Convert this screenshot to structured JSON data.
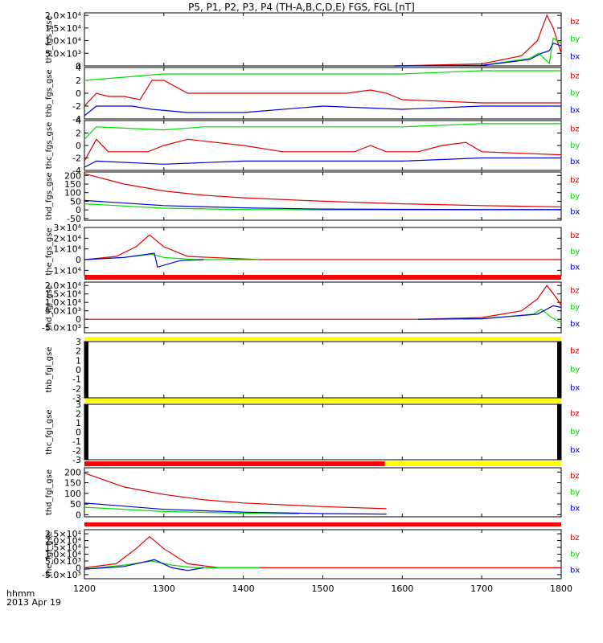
{
  "title": "P5, P1, P2, P3, P4 (TH-A,B,C,D,E) FGS, FGL [nT]",
  "footer": {
    "line1": "hhmm",
    "line2": "2013 Apr 19"
  },
  "colors": {
    "bz": "#e00000",
    "by": "#00dd00",
    "bx": "#0000dd",
    "status_red": "#ff0000",
    "status_yellow": "#ffff00"
  },
  "chart_data": {
    "type": "line",
    "xlabel": "",
    "x_ticks": [
      "1200",
      "1300",
      "1400",
      "1500",
      "1600",
      "1700",
      "1800"
    ],
    "xlim": [
      1200,
      1800
    ],
    "legend": [
      "bz",
      "by",
      "bx"
    ],
    "panels": [
      {
        "ylabel": "tha_fgs_gse",
        "ylim": [
          0,
          21000
        ],
        "yticks": [
          "0",
          "5.0×10³",
          "1.0×10⁴",
          "1.5×10⁴",
          "2.0×10⁴"
        ],
        "series": [
          {
            "name": "bz",
            "points": [
              [
                1590,
                0
              ],
              [
                1700,
                800
              ],
              [
                1750,
                4000
              ],
              [
                1770,
                10000
              ],
              [
                1782,
                20000
              ],
              [
                1790,
                15000
              ],
              [
                1800,
                5000
              ]
            ]
          },
          {
            "name": "by",
            "points": [
              [
                1590,
                0
              ],
              [
                1700,
                200
              ],
              [
                1760,
                3000
              ],
              [
                1772,
                5000
              ],
              [
                1785,
                1000
              ],
              [
                1790,
                11000
              ],
              [
                1800,
                9000
              ]
            ]
          },
          {
            "name": "bx",
            "points": [
              [
                1590,
                0
              ],
              [
                1700,
                200
              ],
              [
                1760,
                2500
              ],
              [
                1775,
                5000
              ],
              [
                1785,
                6000
              ],
              [
                1790,
                9000
              ],
              [
                1800,
                8000
              ]
            ]
          }
        ]
      },
      {
        "ylabel": "thb_fgs_gse",
        "ylim": [
          -4,
          4
        ],
        "yticks": [
          "-4",
          "-2",
          "0",
          "2",
          "4"
        ],
        "series": [
          {
            "name": "bz",
            "points": [
              [
                1200,
                -2
              ],
              [
                1215,
                0
              ],
              [
                1230,
                -0.5
              ],
              [
                1250,
                -0.5
              ],
              [
                1270,
                -1
              ],
              [
                1285,
                2
              ],
              [
                1300,
                2
              ],
              [
                1330,
                0
              ],
              [
                1400,
                0
              ],
              [
                1450,
                0
              ],
              [
                1530,
                0
              ],
              [
                1560,
                0.5
              ],
              [
                1580,
                0
              ],
              [
                1600,
                -1
              ],
              [
                1700,
                -1.5
              ],
              [
                1800,
                -1.5
              ]
            ]
          },
          {
            "name": "by",
            "points": [
              [
                1200,
                2
              ],
              [
                1300,
                3
              ],
              [
                1400,
                3
              ],
              [
                1500,
                3
              ],
              [
                1600,
                3
              ],
              [
                1700,
                3.5
              ],
              [
                1800,
                3.5
              ]
            ]
          },
          {
            "name": "bx",
            "points": [
              [
                1200,
                -3.5
              ],
              [
                1215,
                -2
              ],
              [
                1260,
                -2
              ],
              [
                1285,
                -2.5
              ],
              [
                1330,
                -3
              ],
              [
                1400,
                -3
              ],
              [
                1500,
                -2
              ],
              [
                1600,
                -2.5
              ],
              [
                1700,
                -2
              ],
              [
                1800,
                -2
              ]
            ]
          }
        ]
      },
      {
        "ylabel": "thc_fgs_gse",
        "ylim": [
          -4,
          4
        ],
        "yticks": [
          "-4",
          "-2",
          "0",
          "2",
          "4"
        ],
        "series": [
          {
            "name": "bz",
            "points": [
              [
                1200,
                -2.5
              ],
              [
                1215,
                1
              ],
              [
                1230,
                -1
              ],
              [
                1280,
                -1
              ],
              [
                1300,
                0
              ],
              [
                1330,
                1
              ],
              [
                1400,
                0
              ],
              [
                1450,
                -1
              ],
              [
                1540,
                -1
              ],
              [
                1560,
                0
              ],
              [
                1580,
                -1
              ],
              [
                1620,
                -1
              ],
              [
                1650,
                0
              ],
              [
                1680,
                0.5
              ],
              [
                1700,
                -1
              ],
              [
                1800,
                -1.5
              ]
            ]
          },
          {
            "name": "by",
            "points": [
              [
                1200,
                1
              ],
              [
                1215,
                3
              ],
              [
                1300,
                2.5
              ],
              [
                1350,
                3
              ],
              [
                1500,
                3
              ],
              [
                1600,
                3
              ],
              [
                1700,
                3.5
              ],
              [
                1800,
                3.5
              ]
            ]
          },
          {
            "name": "bx",
            "points": [
              [
                1200,
                -3.5
              ],
              [
                1215,
                -2.5
              ],
              [
                1300,
                -3
              ],
              [
                1400,
                -2.5
              ],
              [
                1500,
                -2.5
              ],
              [
                1600,
                -2.5
              ],
              [
                1700,
                -2
              ],
              [
                1800,
                -2
              ]
            ]
          }
        ]
      },
      {
        "ylabel": "thd_fgs_gse",
        "ylim": [
          -60,
          220
        ],
        "yticks": [
          "-50",
          "0",
          "50",
          "100",
          "150",
          "200"
        ],
        "series": [
          {
            "name": "bz",
            "points": [
              [
                1200,
                210
              ],
              [
                1250,
                150
              ],
              [
                1300,
                110
              ],
              [
                1350,
                85
              ],
              [
                1400,
                70
              ],
              [
                1500,
                50
              ],
              [
                1600,
                35
              ],
              [
                1700,
                25
              ],
              [
                1800,
                18
              ]
            ]
          },
          {
            "name": "by",
            "points": [
              [
                1200,
                35
              ],
              [
                1300,
                10
              ],
              [
                1400,
                2
              ],
              [
                1500,
                0
              ],
              [
                1600,
                0
              ],
              [
                1700,
                0
              ],
              [
                1800,
                0
              ]
            ]
          },
          {
            "name": "bx",
            "points": [
              [
                1200,
                55
              ],
              [
                1300,
                25
              ],
              [
                1400,
                12
              ],
              [
                1500,
                5
              ],
              [
                1600,
                3
              ],
              [
                1700,
                2
              ],
              [
                1800,
                2
              ]
            ]
          }
        ]
      },
      {
        "ylabel": "the_fgs_gse",
        "ylim": [
          -15000,
          30000
        ],
        "yticks": [
          "-1×10⁴",
          "0",
          "1×10⁴",
          "2×10⁴",
          "3×10⁴"
        ],
        "series": [
          {
            "name": "bz",
            "points": [
              [
                1200,
                0
              ],
              [
                1240,
                3000
              ],
              [
                1265,
                12000
              ],
              [
                1282,
                23000
              ],
              [
                1300,
                12000
              ],
              [
                1330,
                3000
              ],
              [
                1420,
                0
              ],
              [
                1800,
                0
              ]
            ]
          },
          {
            "name": "by",
            "points": [
              [
                1200,
                0
              ],
              [
                1250,
                2000
              ],
              [
                1285,
                5000
              ],
              [
                1300,
                2000
              ],
              [
                1340,
                0
              ],
              [
                1420,
                0
              ]
            ]
          },
          {
            "name": "bx",
            "points": [
              [
                1200,
                0
              ],
              [
                1250,
                2000
              ],
              [
                1288,
                6000
              ],
              [
                1292,
                -7000
              ],
              [
                1320,
                -1000
              ],
              [
                1350,
                0
              ]
            ]
          }
        ]
      },
      {
        "ylabel": "thd_fgl_gse",
        "ylim": [
          -8000,
          22000
        ],
        "yticks": [
          "-5.0×10³",
          "0",
          "5.0×10³",
          "1.0×10⁴",
          "1.5×10⁴",
          "2.0×10⁴"
        ],
        "series": [
          {
            "name": "bz",
            "points": [
              [
                1200,
                0
              ],
              [
                1620,
                0
              ],
              [
                1700,
                1000
              ],
              [
                1750,
                5000
              ],
              [
                1770,
                12000
              ],
              [
                1782,
                20000
              ],
              [
                1795,
                12000
              ],
              [
                1800,
                8000
              ]
            ]
          },
          {
            "name": "by",
            "points": [
              [
                1620,
                0
              ],
              [
                1700,
                300
              ],
              [
                1765,
                3000
              ],
              [
                1775,
                6000
              ],
              [
                1788,
                1000
              ],
              [
                1800,
                -2000
              ]
            ]
          },
          {
            "name": "bx",
            "points": [
              [
                1620,
                0
              ],
              [
                1700,
                300
              ],
              [
                1770,
                3000
              ],
              [
                1790,
                8000
              ],
              [
                1800,
                7000
              ]
            ]
          }
        ]
      },
      {
        "ylabel": "thb_fgl_gse",
        "ylim": [
          -3,
          3
        ],
        "yticks": [
          "-3",
          "-2",
          "-1",
          "0",
          "1",
          "2",
          "3"
        ],
        "series": []
      },
      {
        "ylabel": "thc_fgl_gse",
        "ylim": [
          -3,
          3
        ],
        "yticks": [
          "-3",
          "-2",
          "-1",
          "0",
          "1",
          "2",
          "3"
        ],
        "series": []
      },
      {
        "ylabel": "thd_fgl_gse",
        "ylim": [
          -10,
          220
        ],
        "yticks": [
          "0",
          "50",
          "100",
          "150",
          "200"
        ],
        "series": [
          {
            "name": "bz",
            "points": [
              [
                1200,
                195
              ],
              [
                1250,
                130
              ],
              [
                1300,
                95
              ],
              [
                1350,
                70
              ],
              [
                1400,
                55
              ],
              [
                1500,
                38
              ],
              [
                1580,
                28
              ]
            ]
          },
          {
            "name": "by",
            "points": [
              [
                1200,
                35
              ],
              [
                1300,
                15
              ],
              [
                1400,
                7
              ],
              [
                1470,
                4
              ]
            ]
          },
          {
            "name": "bx",
            "points": [
              [
                1200,
                55
              ],
              [
                1300,
                25
              ],
              [
                1400,
                12
              ],
              [
                1500,
                5
              ],
              [
                1580,
                3
              ]
            ]
          }
        ]
      },
      {
        "ylabel": "the_fgl_gse",
        "ylim": [
          -8000,
          28000
        ],
        "yticks": [
          "-5.0×10³",
          "0",
          "5.0×10³",
          "1.0×10⁴",
          "1.5×10⁴",
          "2.0×10⁴",
          "2.5×10⁴"
        ],
        "series": [
          {
            "name": "bz",
            "points": [
              [
                1200,
                0
              ],
              [
                1240,
                3000
              ],
              [
                1265,
                14000
              ],
              [
                1282,
                23000
              ],
              [
                1300,
                14000
              ],
              [
                1330,
                3000
              ],
              [
                1370,
                0
              ],
              [
                1800,
                0
              ]
            ]
          },
          {
            "name": "by",
            "points": [
              [
                1200,
                -1000
              ],
              [
                1250,
                2000
              ],
              [
                1285,
                5000
              ],
              [
                1310,
                2000
              ],
              [
                1340,
                0
              ],
              [
                1420,
                0
              ]
            ]
          },
          {
            "name": "bx",
            "points": [
              [
                1200,
                -1000
              ],
              [
                1250,
                1000
              ],
              [
                1288,
                6000
              ],
              [
                1310,
                0
              ],
              [
                1330,
                -2000
              ],
              [
                1350,
                0
              ]
            ]
          }
        ]
      }
    ],
    "status_bars": [
      {
        "segments": [
          {
            "x0": 1200,
            "x1": 1800,
            "color": "status_red"
          }
        ]
      },
      {
        "segments": [
          {
            "x0": 1200,
            "x1": 1800,
            "color": "status_yellow"
          }
        ]
      },
      {
        "segments": [
          {
            "x0": 1200,
            "x1": 1800,
            "color": "status_yellow"
          }
        ]
      },
      {
        "segments": [
          {
            "x0": 1200,
            "x1": 1578,
            "color": "status_red"
          },
          {
            "x0": 1578,
            "x1": 1800,
            "color": "status_yellow"
          }
        ]
      },
      {
        "segments": [
          {
            "x0": 1200,
            "x1": 1800,
            "color": "status_red"
          }
        ]
      }
    ]
  }
}
